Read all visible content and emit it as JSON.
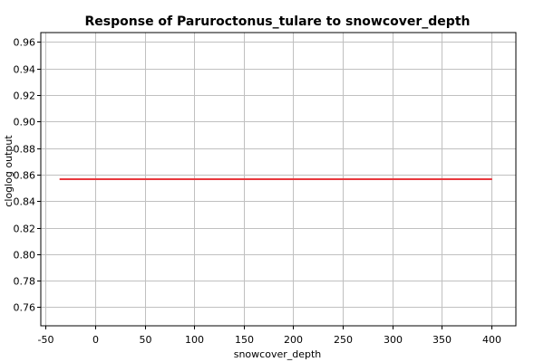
{
  "chart_data": {
    "type": "line",
    "title": "Response of Paruroctonus_tulare to snowcover_depth",
    "xlabel": "snowcover_depth",
    "ylabel": "cloglog output",
    "xlim": [
      -55,
      425
    ],
    "ylim": [
      0.746,
      0.967
    ],
    "x_ticks": [
      -50,
      0,
      50,
      100,
      150,
      200,
      250,
      300,
      350,
      400
    ],
    "x_tick_labels": [
      "-50",
      "0",
      "50",
      "100",
      "150",
      "200",
      "250",
      "300",
      "350",
      "400"
    ],
    "y_ticks": [
      0.76,
      0.78,
      0.8,
      0.82,
      0.84,
      0.86,
      0.88,
      0.9,
      0.92,
      0.94,
      0.96
    ],
    "y_tick_labels": [
      "0.76",
      "0.78",
      "0.80",
      "0.82",
      "0.84",
      "0.86",
      "0.88",
      "0.90",
      "0.92",
      "0.94",
      "0.96"
    ],
    "grid": true,
    "series": [
      {
        "name": "response",
        "color": "#e8383d",
        "x": [
          -36,
          0,
          50,
          100,
          150,
          200,
          250,
          300,
          350,
          401
        ],
        "y": [
          0.8565,
          0.8565,
          0.8565,
          0.8565,
          0.8565,
          0.8565,
          0.8565,
          0.8565,
          0.8565,
          0.8565
        ]
      }
    ]
  }
}
